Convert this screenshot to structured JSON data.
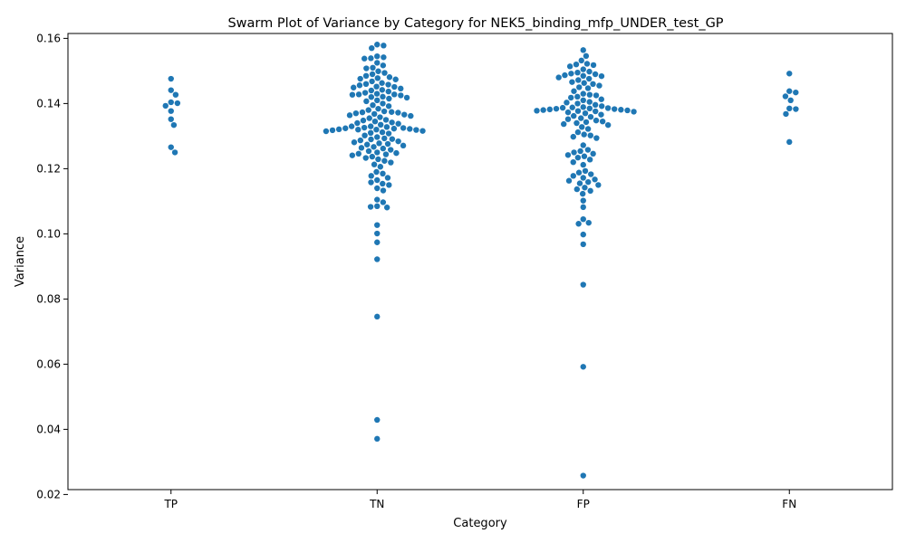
{
  "chart_data": {
    "type": "scatter",
    "subtype": "swarm",
    "title": "Swarm Plot of Variance by Category for NEK5_binding_mfp_UNDER_test_GP",
    "xlabel": "Category",
    "ylabel": "Variance",
    "categories": [
      "TP",
      "TN",
      "FP",
      "FN"
    ],
    "ylim": [
      0.0215,
      0.1615
    ],
    "yticks": [
      0.02,
      0.04,
      0.06,
      0.08,
      0.1,
      0.12,
      0.14,
      0.16
    ],
    "ytick_labels": [
      "0.02",
      "0.04",
      "0.06",
      "0.08",
      "0.10",
      "0.12",
      "0.14",
      "0.16"
    ],
    "grid": false,
    "marker_color": "#1f77b4",
    "series": [
      {
        "category": "TP",
        "values": [
          0.1476,
          0.1441,
          0.1427,
          0.1404,
          0.1401,
          0.1393,
          0.1377,
          0.1352,
          0.1334,
          0.1266,
          0.125
        ]
      },
      {
        "category": "TN",
        "values": [
          0.1581,
          0.1578,
          0.157,
          0.1545,
          0.1542,
          0.1539,
          0.1538,
          0.1525,
          0.1517,
          0.151,
          0.1508,
          0.1499,
          0.1494,
          0.149,
          0.1485,
          0.1481,
          0.1478,
          0.1476,
          0.1474,
          0.1468,
          0.1463,
          0.146,
          0.1458,
          0.1456,
          0.1452,
          0.1451,
          0.1449,
          0.1446,
          0.1442,
          0.144,
          0.1437,
          0.1433,
          0.143,
          0.1428,
          0.1428,
          0.1427,
          0.1425,
          0.1421,
          0.142,
          0.1418,
          0.1415,
          0.141,
          0.1407,
          0.14,
          0.1395,
          0.1392,
          0.1384,
          0.138,
          0.1376,
          0.1374,
          0.1373,
          0.1372,
          0.137,
          0.1368,
          0.1366,
          0.1364,
          0.1362,
          0.1358,
          0.1355,
          0.135,
          0.1348,
          0.1345,
          0.1342,
          0.134,
          0.1338,
          0.1335,
          0.133,
          0.133,
          0.1328,
          0.1326,
          0.1325,
          0.1324,
          0.1323,
          0.1322,
          0.1321,
          0.132,
          0.132,
          0.1319,
          0.1318,
          0.1316,
          0.1315,
          0.1312,
          0.131,
          0.1308,
          0.1302,
          0.1297,
          0.1293,
          0.1291,
          0.129,
          0.1287,
          0.1284,
          0.1281,
          0.1278,
          0.1276,
          0.1274,
          0.1271,
          0.1267,
          0.1264,
          0.1262,
          0.1258,
          0.1254,
          0.125,
          0.1248,
          0.1246,
          0.1244,
          0.1241,
          0.1237,
          0.1233,
          0.1229,
          0.1224,
          0.1219,
          0.1213,
          0.1206,
          0.119,
          0.1185,
          0.1178,
          0.1172,
          0.1165,
          0.1158,
          0.1154,
          0.115,
          0.114,
          0.1133,
          0.1105,
          0.1097,
          0.1085,
          0.1083,
          0.1081,
          0.1027,
          0.1001,
          0.0974,
          0.0922,
          0.0746,
          0.0429,
          0.0371
        ]
      },
      {
        "category": "FP",
        "values": [
          0.1564,
          0.1546,
          0.1532,
          0.1522,
          0.152,
          0.1518,
          0.1514,
          0.1505,
          0.1498,
          0.1495,
          0.1492,
          0.149,
          0.1487,
          0.1485,
          0.1484,
          0.148,
          0.1476,
          0.1472,
          0.1466,
          0.1463,
          0.146,
          0.1455,
          0.145,
          0.1447,
          0.1438,
          0.143,
          0.1427,
          0.1425,
          0.1421,
          0.1418,
          0.1413,
          0.141,
          0.1405,
          0.1403,
          0.14,
          0.1396,
          0.1392,
          0.1389,
          0.1388,
          0.1387,
          0.1386,
          0.1385,
          0.1384,
          0.1383,
          0.1382,
          0.1381,
          0.138,
          0.1379,
          0.1378,
          0.1377,
          0.1376,
          0.1375,
          0.1373,
          0.137,
          0.1366,
          0.1362,
          0.1359,
          0.1355,
          0.1352,
          0.1348,
          0.1345,
          0.1343,
          0.134,
          0.1337,
          0.1334,
          0.1328,
          0.1322,
          0.1312,
          0.1305,
          0.1302,
          0.1298,
          0.1294,
          0.1272,
          0.1258,
          0.1254,
          0.125,
          0.1246,
          0.1242,
          0.1238,
          0.1234,
          0.1228,
          0.122,
          0.1212,
          0.1193,
          0.1188,
          0.1183,
          0.1178,
          0.1172,
          0.1167,
          0.1163,
          0.1159,
          0.1155,
          0.115,
          0.1142,
          0.1137,
          0.1132,
          0.1123,
          0.1102,
          0.1082,
          0.1045,
          0.1034,
          0.1031,
          0.0998,
          0.0968,
          0.0844,
          0.0592,
          0.0258
        ]
      },
      {
        "category": "FN",
        "values": [
          0.1492,
          0.1438,
          0.1434,
          0.1422,
          0.141,
          0.1385,
          0.1383,
          0.1368,
          0.1282
        ]
      }
    ]
  }
}
